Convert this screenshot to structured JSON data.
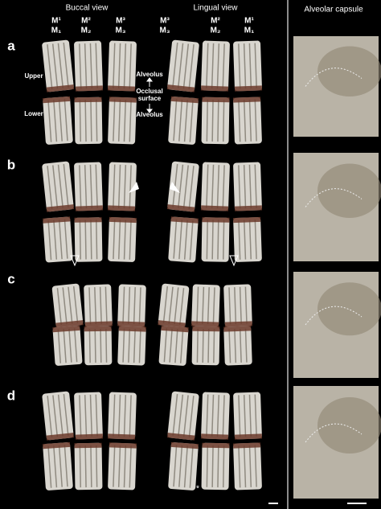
{
  "header": {
    "buccal_view": "Buccal view",
    "lingual_view": "Lingual view",
    "alveolar_capsule": "Alveolar capsule"
  },
  "buccal_molars": [
    {
      "upper": "M¹",
      "lower": "M₁"
    },
    {
      "upper": "M²",
      "lower": "M₂"
    },
    {
      "upper": "M³",
      "lower": "M₃"
    }
  ],
  "lingual_molars": [
    {
      "upper": "M³",
      "lower": "M₃"
    },
    {
      "upper": "M²",
      "lower": "M₂"
    },
    {
      "upper": "M¹",
      "lower": "M₁"
    }
  ],
  "panel_labels": [
    "a",
    "b",
    "c",
    "d"
  ],
  "annotations": {
    "upper": "Upper",
    "lower": "Lower",
    "alveolus_top": "Alveolus",
    "occlusal_surface": [
      "Occlusal",
      "surface"
    ],
    "alveolus_bottom": "Alveolus"
  },
  "asterisk": "*"
}
